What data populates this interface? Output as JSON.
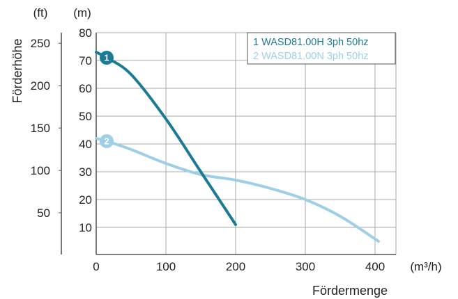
{
  "chart_data": {
    "type": "line",
    "xlabel": "Fördermenge",
    "x_unit": "(m³/h)",
    "ylabel_left": "Förderhöhe",
    "y_unit_left": "(ft)",
    "y_unit_right": "(m)",
    "xlim": [
      0,
      420
    ],
    "ylim": [
      3,
      80
    ],
    "x_ticks": [
      0,
      100,
      200,
      300,
      400
    ],
    "y_ticks_m": [
      10,
      20,
      30,
      40,
      50,
      60,
      70,
      80
    ],
    "y_ticks_ft": [
      50,
      100,
      150,
      200,
      250
    ],
    "grid": true,
    "legend_position": "top-right",
    "series": [
      {
        "name": "1 WASD81.00H 3ph 50hz",
        "marker_label": "1",
        "color": "#1b7a96",
        "x": [
          0,
          15,
          50,
          100,
          150,
          200
        ],
        "y": [
          73,
          71,
          65,
          49,
          30,
          11
        ]
      },
      {
        "name": "2 WASD81.00N 3ph 50hz",
        "marker_label": "2",
        "color": "#9fcfe6",
        "x": [
          0,
          15,
          50,
          100,
          150,
          200,
          250,
          300,
          350,
          405
        ],
        "y": [
          42,
          41,
          38,
          33,
          29,
          27,
          24,
          20,
          14,
          5
        ]
      }
    ]
  }
}
